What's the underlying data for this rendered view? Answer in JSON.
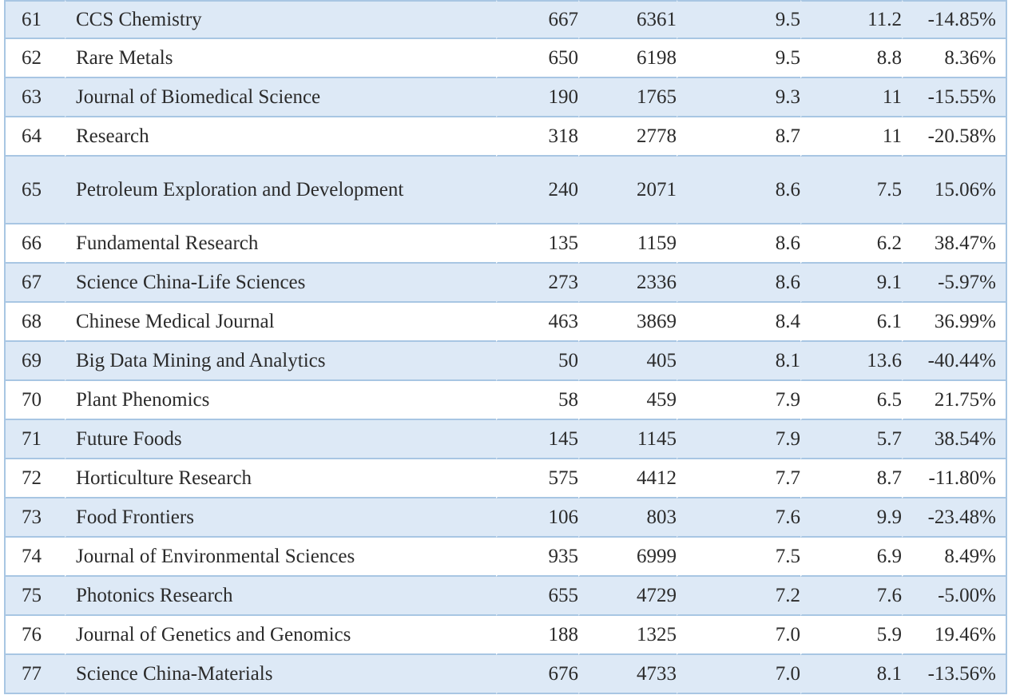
{
  "rows": [
    {
      "rank": "61",
      "name": "CCS Chemistry",
      "a": "667",
      "b": "6361",
      "c": "9.5",
      "d": "11.2",
      "e": "-14.85%"
    },
    {
      "rank": "62",
      "name": "Rare Metals",
      "a": "650",
      "b": "6198",
      "c": "9.5",
      "d": "8.8",
      "e": "8.36%"
    },
    {
      "rank": "63",
      "name": "Journal of Biomedical Science",
      "a": "190",
      "b": "1765",
      "c": "9.3",
      "d": "11",
      "e": "-15.55%"
    },
    {
      "rank": "64",
      "name": "Research",
      "a": "318",
      "b": "2778",
      "c": "8.7",
      "d": "11",
      "e": "-20.58%"
    },
    {
      "rank": "65",
      "name": "Petroleum Exploration and Development",
      "a": "240",
      "b": "2071",
      "c": "8.6",
      "d": "7.5",
      "e": "15.06%"
    },
    {
      "rank": "66",
      "name": "Fundamental Research",
      "a": "135",
      "b": "1159",
      "c": "8.6",
      "d": "6.2",
      "e": "38.47%"
    },
    {
      "rank": "67",
      "name": "Science China-Life Sciences",
      "a": "273",
      "b": "2336",
      "c": "8.6",
      "d": "9.1",
      "e": "-5.97%"
    },
    {
      "rank": "68",
      "name": "Chinese Medical Journal",
      "a": "463",
      "b": "3869",
      "c": "8.4",
      "d": "6.1",
      "e": "36.99%"
    },
    {
      "rank": "69",
      "name": "Big Data Mining and Analytics",
      "a": "50",
      "b": "405",
      "c": "8.1",
      "d": "13.6",
      "e": "-40.44%"
    },
    {
      "rank": "70",
      "name": "Plant Phenomics",
      "a": "58",
      "b": "459",
      "c": "7.9",
      "d": "6.5",
      "e": "21.75%"
    },
    {
      "rank": "71",
      "name": "Future Foods",
      "a": "145",
      "b": "1145",
      "c": "7.9",
      "d": "5.7",
      "e": "38.54%"
    },
    {
      "rank": "72",
      "name": "Horticulture Research",
      "a": "575",
      "b": "4412",
      "c": "7.7",
      "d": "8.7",
      "e": "-11.80%"
    },
    {
      "rank": "73",
      "name": "Food Frontiers",
      "a": "106",
      "b": "803",
      "c": "7.6",
      "d": "9.9",
      "e": "-23.48%"
    },
    {
      "rank": "74",
      "name": "Journal of Environmental Sciences",
      "a": "935",
      "b": "6999",
      "c": "7.5",
      "d": "6.9",
      "e": "8.49%"
    },
    {
      "rank": "75",
      "name": "Photonics Research",
      "a": "655",
      "b": "4729",
      "c": "7.2",
      "d": "7.6",
      "e": "-5.00%"
    },
    {
      "rank": "76",
      "name": "Journal of Genetics and Genomics",
      "a": "188",
      "b": "1325",
      "c": "7.0",
      "d": "5.9",
      "e": "19.46%"
    },
    {
      "rank": "77",
      "name": "Science China-Materials",
      "a": "676",
      "b": "4733",
      "c": "7.0",
      "d": "8.1",
      "e": "-13.56%"
    }
  ],
  "colors": {
    "border": "#a8c6e3",
    "row_shaded": "#dde9f6",
    "row_plain": "#ffffff",
    "text": "#2b2b2b"
  }
}
